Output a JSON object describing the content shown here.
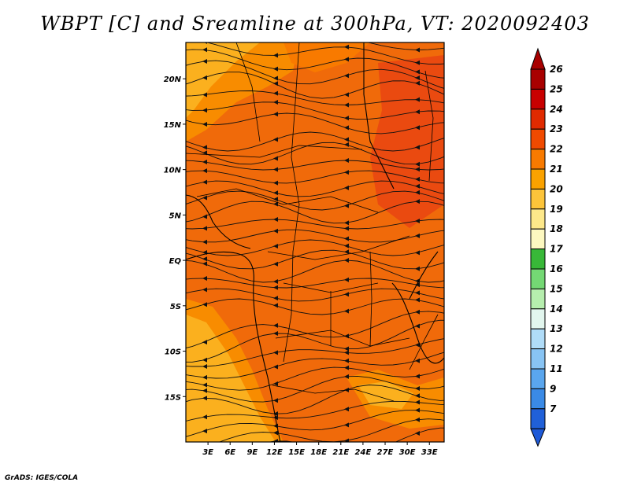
{
  "title": "WBPT [C] and Sreamline at 300hPa, VT: 2020092403",
  "credit": "GrADS: IGES/COLA",
  "map": {
    "lon_range": [
      0,
      35
    ],
    "lat_range": [
      -20,
      24
    ],
    "x_ticks": [
      {
        "value": 3,
        "label": "3E"
      },
      {
        "value": 6,
        "label": "6E"
      },
      {
        "value": 9,
        "label": "9E"
      },
      {
        "value": 12,
        "label": "12E"
      },
      {
        "value": 15,
        "label": "15E"
      },
      {
        "value": 18,
        "label": "18E"
      },
      {
        "value": 21,
        "label": "21E"
      },
      {
        "value": 24,
        "label": "24E"
      },
      {
        "value": 27,
        "label": "27E"
      },
      {
        "value": 30,
        "label": "30E"
      },
      {
        "value": 33,
        "label": "33E"
      }
    ],
    "y_ticks": [
      {
        "value": 20,
        "label": "20N"
      },
      {
        "value": 15,
        "label": "15N"
      },
      {
        "value": 10,
        "label": "10N"
      },
      {
        "value": 5,
        "label": "5N"
      },
      {
        "value": 0,
        "label": "EQ"
      },
      {
        "value": -5,
        "label": "5S"
      },
      {
        "value": -10,
        "label": "10S"
      },
      {
        "value": -15,
        "label": "15S"
      }
    ],
    "base_color": "#f06a0a"
  },
  "colorbar": {
    "levels": [
      {
        "label": "26",
        "color": "#a80000"
      },
      {
        "label": "25",
        "color": "#c80000"
      },
      {
        "label": "24",
        "color": "#e02a00"
      },
      {
        "label": "23",
        "color": "#f04a00"
      },
      {
        "label": "22",
        "color": "#f87a00"
      },
      {
        "label": "21",
        "color": "#faa200"
      },
      {
        "label": "20",
        "color": "#fcc43a"
      },
      {
        "label": "19",
        "color": "#fde88a"
      },
      {
        "label": "18",
        "color": "#fdf8c0"
      },
      {
        "label": "17",
        "color": "#38b838"
      },
      {
        "label": "16",
        "color": "#74d874"
      },
      {
        "label": "15",
        "color": "#b6eeae"
      },
      {
        "label": "14",
        "color": "#e2f6ee"
      },
      {
        "label": "13",
        "color": "#b0dcf8"
      },
      {
        "label": "12",
        "color": "#88c4f4"
      },
      {
        "label": "11",
        "color": "#5aa6ee"
      },
      {
        "label": "9",
        "color": "#3a8ae6"
      },
      {
        "label": "7",
        "color": "#2060d8"
      }
    ],
    "bottom_color": "#1e5ad8"
  }
}
